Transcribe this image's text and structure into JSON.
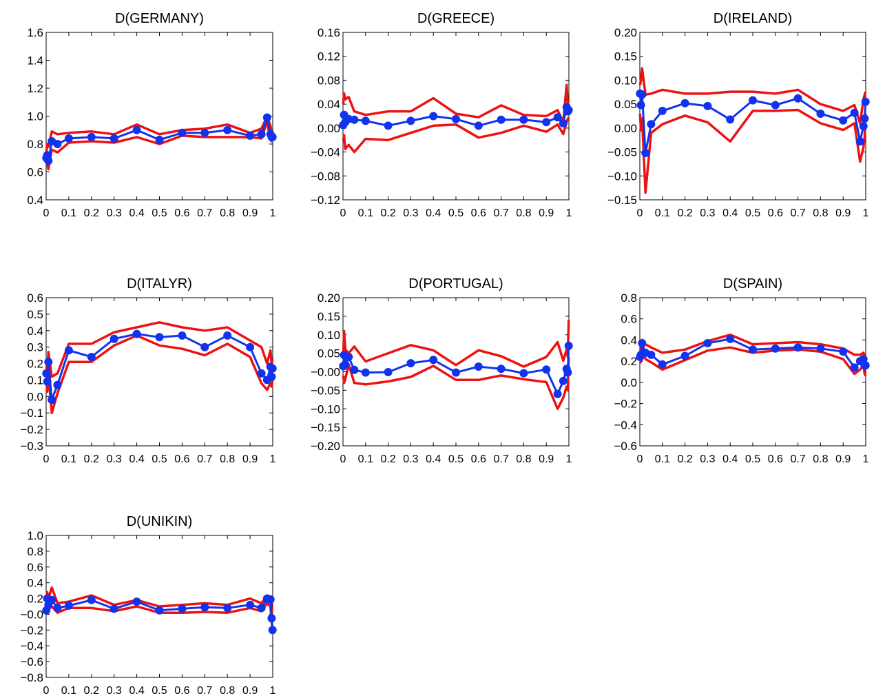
{
  "colors": {
    "band": "#ee1111",
    "estimate": "#1133ee",
    "axis": "#000000"
  },
  "chart_data": [
    {
      "type": "line",
      "title": "D(GERMANY)",
      "ylim": [
        0.4,
        1.6
      ],
      "yticks": [
        "0.4",
        "0.6",
        "0.8",
        "1.0",
        "1.2",
        "1.4",
        "1.6"
      ],
      "xlim": [
        0,
        1
      ],
      "xticks": [
        "0",
        "0.1",
        "0.2",
        "0.3",
        "0.4",
        "0.5",
        "0.6",
        "0.7",
        "0.8",
        "0.9",
        "1"
      ],
      "x": [
        0.001,
        0.005,
        0.01,
        0.025,
        0.05,
        0.1,
        0.2,
        0.3,
        0.4,
        0.5,
        0.6,
        0.7,
        0.8,
        0.9,
        0.95,
        0.975,
        0.99,
        0.995,
        0.999
      ],
      "series": [
        {
          "role": "estimate",
          "values": [
            0.7,
            0.72,
            0.68,
            0.82,
            0.8,
            0.84,
            0.85,
            0.84,
            0.9,
            0.83,
            0.88,
            0.88,
            0.9,
            0.86,
            0.87,
            0.99,
            0.87,
            0.85,
            0.85
          ]
        },
        {
          "role": "upper",
          "values": [
            0.74,
            0.8,
            0.78,
            0.89,
            0.87,
            0.88,
            0.89,
            0.87,
            0.94,
            0.87,
            0.9,
            0.91,
            0.94,
            0.88,
            0.91,
            1.0,
            0.93,
            0.88,
            0.87
          ]
        },
        {
          "role": "lower",
          "values": [
            0.66,
            0.66,
            0.62,
            0.76,
            0.74,
            0.81,
            0.82,
            0.81,
            0.85,
            0.8,
            0.86,
            0.85,
            0.85,
            0.85,
            0.84,
            0.96,
            0.83,
            0.82,
            0.83
          ]
        }
      ]
    },
    {
      "type": "line",
      "title": "D(GREECE)",
      "ylim": [
        -0.12,
        0.16
      ],
      "yticks": [
        "−0.12",
        "−0.08",
        "−0.04",
        "0.00",
        "0.04",
        "0.08",
        "0.12",
        "0.16"
      ],
      "xlim": [
        0,
        1
      ],
      "xticks": [
        "0",
        "0.1",
        "0.2",
        "0.3",
        "0.4",
        "0.5",
        "0.6",
        "0.7",
        "0.8",
        "0.9",
        "1"
      ],
      "x": [
        0.001,
        0.005,
        0.01,
        0.025,
        0.05,
        0.1,
        0.2,
        0.3,
        0.4,
        0.5,
        0.6,
        0.7,
        0.8,
        0.9,
        0.95,
        0.975,
        0.99,
        0.995,
        0.999
      ],
      "series": [
        {
          "role": "estimate",
          "values": [
            0.005,
            0.022,
            0.01,
            0.015,
            0.014,
            0.012,
            0.004,
            0.012,
            0.02,
            0.015,
            0.004,
            0.014,
            0.014,
            0.01,
            0.018,
            0.008,
            0.035,
            0.028,
            0.03
          ]
        },
        {
          "role": "upper",
          "values": [
            0.04,
            0.058,
            0.048,
            0.052,
            0.028,
            0.022,
            0.028,
            0.028,
            0.05,
            0.024,
            0.018,
            0.038,
            0.022,
            0.02,
            0.03,
            0.01,
            0.072,
            0.04,
            0.04
          ]
        },
        {
          "role": "lower",
          "values": [
            -0.02,
            -0.012,
            -0.035,
            -0.028,
            -0.04,
            -0.018,
            -0.02,
            -0.008,
            0.004,
            0.006,
            -0.016,
            -0.008,
            0.004,
            -0.006,
            0.006,
            -0.01,
            0.01,
            0.015,
            0.018
          ]
        }
      ]
    },
    {
      "type": "line",
      "title": "D(IRELAND)",
      "ylim": [
        -0.15,
        0.2
      ],
      "yticks": [
        "−0.15",
        "−0.10",
        "−0.05",
        "0.00",
        "0.05",
        "0.10",
        "0.15",
        "0.20"
      ],
      "xlim": [
        0,
        1
      ],
      "xticks": [
        "0",
        "0.1",
        "0.2",
        "0.3",
        "0.4",
        "0.5",
        "0.6",
        "0.7",
        "0.8",
        "0.9",
        "1"
      ],
      "x": [
        0.001,
        0.005,
        0.01,
        0.025,
        0.05,
        0.1,
        0.2,
        0.3,
        0.4,
        0.5,
        0.6,
        0.7,
        0.8,
        0.9,
        0.95,
        0.975,
        0.99,
        0.995,
        0.999
      ],
      "series": [
        {
          "role": "estimate",
          "values": [
            0.072,
            0.048,
            0.07,
            -0.052,
            0.008,
            0.036,
            0.052,
            0.046,
            0.018,
            0.058,
            0.048,
            0.062,
            0.03,
            0.016,
            0.032,
            -0.028,
            0.004,
            0.02,
            0.055
          ]
        },
        {
          "role": "upper",
          "values": [
            0.09,
            0.1,
            0.125,
            0.07,
            0.072,
            0.08,
            0.072,
            0.072,
            0.076,
            0.076,
            0.072,
            0.08,
            0.05,
            0.036,
            0.048,
            0.01,
            0.06,
            0.07,
            0.076
          ]
        },
        {
          "role": "lower",
          "values": [
            0.03,
            -0.005,
            0.02,
            -0.135,
            -0.01,
            0.008,
            0.026,
            0.012,
            -0.028,
            0.036,
            0.036,
            0.038,
            0.01,
            -0.004,
            0.01,
            -0.07,
            -0.04,
            -0.02,
            0.03
          ]
        }
      ]
    },
    {
      "type": "line",
      "title": "D(ITALYR)",
      "ylim": [
        -0.3,
        0.6
      ],
      "yticks": [
        "−0.3",
        "−0.2",
        "−0.1",
        "0.0",
        "0.1",
        "0.2",
        "0.3",
        "0.4",
        "0.5",
        "0.6"
      ],
      "xlim": [
        0,
        1
      ],
      "xticks": [
        "0",
        "0.1",
        "0.2",
        "0.3",
        "0.4",
        "0.5",
        "0.6",
        "0.7",
        "0.8",
        "0.9",
        "1"
      ],
      "x": [
        0.001,
        0.005,
        0.01,
        0.025,
        0.05,
        0.1,
        0.2,
        0.3,
        0.4,
        0.5,
        0.6,
        0.7,
        0.8,
        0.9,
        0.95,
        0.975,
        0.99,
        0.995,
        0.999
      ],
      "series": [
        {
          "role": "estimate",
          "values": [
            0.14,
            0.09,
            0.21,
            -0.02,
            0.07,
            0.28,
            0.24,
            0.35,
            0.38,
            0.36,
            0.37,
            0.3,
            0.37,
            0.3,
            0.14,
            0.1,
            0.18,
            0.12,
            0.17
          ]
        },
        {
          "role": "upper",
          "values": [
            0.18,
            0.15,
            0.27,
            0.12,
            0.14,
            0.32,
            0.32,
            0.39,
            0.42,
            0.45,
            0.42,
            0.4,
            0.42,
            0.34,
            0.3,
            0.2,
            0.28,
            0.2,
            0.22
          ]
        },
        {
          "role": "lower",
          "values": [
            0.1,
            0.03,
            0.14,
            -0.1,
            0.02,
            0.21,
            0.21,
            0.31,
            0.37,
            0.31,
            0.29,
            0.25,
            0.32,
            0.24,
            0.08,
            0.04,
            0.08,
            0.06,
            0.1
          ]
        }
      ]
    },
    {
      "type": "line",
      "title": "D(PORTUGAL)",
      "ylim": [
        -0.2,
        0.2
      ],
      "yticks": [
        "−0.20",
        "−0.15",
        "−0.10",
        "−0.05",
        "−0.00",
        "0.05",
        "0.10",
        "0.15",
        "0.20"
      ],
      "xlim": [
        0,
        1
      ],
      "xticks": [
        "0",
        "0.1",
        "0.2",
        "0.3",
        "0.4",
        "0.5",
        "0.6",
        "0.7",
        "0.8",
        "0.9",
        "1"
      ],
      "x": [
        0.001,
        0.005,
        0.01,
        0.025,
        0.05,
        0.1,
        0.2,
        0.3,
        0.4,
        0.5,
        0.6,
        0.7,
        0.8,
        0.9,
        0.95,
        0.975,
        0.99,
        0.995,
        0.999
      ],
      "series": [
        {
          "role": "estimate",
          "values": [
            0.015,
            0.045,
            0.02,
            0.04,
            0.005,
            -0.002,
            -0.001,
            0.023,
            0.032,
            -0.002,
            0.014,
            0.008,
            -0.004,
            0.006,
            -0.06,
            -0.025,
            0.008,
            -0.002,
            0.07
          ]
        },
        {
          "role": "upper",
          "values": [
            0.04,
            0.11,
            0.06,
            0.05,
            0.068,
            0.028,
            0.05,
            0.072,
            0.058,
            0.018,
            0.058,
            0.042,
            0.014,
            0.04,
            0.08,
            0.03,
            0.06,
            0.04,
            0.14
          ]
        },
        {
          "role": "lower",
          "values": [
            -0.01,
            -0.03,
            -0.02,
            0.02,
            -0.03,
            -0.034,
            -0.026,
            -0.014,
            0.016,
            -0.022,
            -0.022,
            -0.01,
            -0.02,
            -0.028,
            -0.1,
            -0.07,
            -0.04,
            -0.05,
            0.04
          ]
        }
      ]
    },
    {
      "type": "line",
      "title": "D(SPAIN)",
      "ylim": [
        -0.6,
        0.8
      ],
      "yticks": [
        "−0.6",
        "−0.4",
        "−0.2",
        "0.0",
        "0.2",
        "0.4",
        "0.6",
        "0.8"
      ],
      "xlim": [
        0,
        1
      ],
      "xticks": [
        "0",
        "0.1",
        "0.2",
        "0.3",
        "0.4",
        "0.5",
        "0.6",
        "0.7",
        "0.8",
        "0.9",
        "1"
      ],
      "x": [
        0.001,
        0.005,
        0.01,
        0.025,
        0.05,
        0.1,
        0.2,
        0.3,
        0.4,
        0.5,
        0.6,
        0.7,
        0.8,
        0.9,
        0.95,
        0.975,
        0.99,
        0.995,
        0.999
      ],
      "series": [
        {
          "role": "estimate",
          "values": [
            0.24,
            0.26,
            0.37,
            0.28,
            0.26,
            0.17,
            0.25,
            0.37,
            0.41,
            0.31,
            0.32,
            0.33,
            0.32,
            0.29,
            0.14,
            0.2,
            0.22,
            0.16,
            0.16
          ]
        },
        {
          "role": "upper",
          "values": [
            0.3,
            0.32,
            0.4,
            0.36,
            0.33,
            0.28,
            0.31,
            0.39,
            0.45,
            0.36,
            0.37,
            0.38,
            0.36,
            0.32,
            0.26,
            0.26,
            0.28,
            0.25,
            0.24
          ]
        },
        {
          "role": "lower",
          "values": [
            0.18,
            0.2,
            0.32,
            0.22,
            0.19,
            0.12,
            0.21,
            0.3,
            0.33,
            0.28,
            0.3,
            0.31,
            0.29,
            0.22,
            0.08,
            0.12,
            0.16,
            0.08,
            0.06
          ]
        }
      ]
    },
    {
      "type": "line",
      "title": "D(UNIKIN)",
      "ylim": [
        -0.8,
        1.0
      ],
      "yticks": [
        "−0.8",
        "−0.6",
        "−0.4",
        "−0.2",
        "−0.0",
        "0.2",
        "0.4",
        "0.6",
        "0.8",
        "1.0"
      ],
      "xlim": [
        0,
        1
      ],
      "xticks": [
        "0",
        "0.1",
        "0.2",
        "0.3",
        "0.4",
        "0.5",
        "0.6",
        "0.7",
        "0.8",
        "0.9",
        "1"
      ],
      "x": [
        0.001,
        0.005,
        0.01,
        0.025,
        0.05,
        0.1,
        0.2,
        0.3,
        0.4,
        0.5,
        0.6,
        0.7,
        0.8,
        0.9,
        0.95,
        0.975,
        0.99,
        0.995,
        0.999
      ],
      "series": [
        {
          "role": "estimate",
          "values": [
            0.05,
            0.2,
            0.12,
            0.18,
            0.08,
            0.11,
            0.18,
            0.07,
            0.16,
            0.05,
            0.07,
            0.09,
            0.08,
            0.12,
            0.08,
            0.2,
            0.19,
            -0.05,
            -0.2
          ]
        },
        {
          "role": "upper",
          "values": [
            0.12,
            0.28,
            0.2,
            0.34,
            0.14,
            0.16,
            0.24,
            0.12,
            0.18,
            0.1,
            0.12,
            0.14,
            0.12,
            0.2,
            0.14,
            0.24,
            0.22,
            0.05,
            -0.08
          ]
        },
        {
          "role": "lower",
          "values": [
            0.0,
            0.12,
            0.06,
            0.1,
            0.02,
            0.08,
            0.08,
            0.04,
            0.1,
            0.02,
            0.02,
            0.03,
            0.02,
            0.08,
            0.04,
            0.14,
            0.1,
            -0.1,
            -0.18
          ]
        }
      ]
    }
  ]
}
